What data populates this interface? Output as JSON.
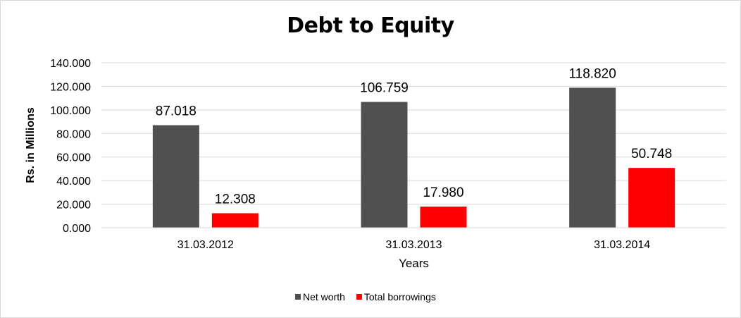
{
  "chart_data": {
    "type": "bar",
    "title": "Debt to Equity",
    "xlabel": "Years",
    "ylabel": "Rs. in Millions",
    "categories": [
      "31.03.2012",
      "31.03.2013",
      "31.03.2014"
    ],
    "series": [
      {
        "name": "Net worth",
        "values": [
          87.018,
          106.759,
          118.82
        ],
        "labels": [
          "87.018",
          "106.759",
          "118.820"
        ],
        "color": "#505050"
      },
      {
        "name": "Total borrowings",
        "values": [
          12.308,
          17.98,
          50.748
        ],
        "labels": [
          "12.308",
          "17.980",
          "50.748"
        ],
        "color": "#ff0000"
      }
    ],
    "ylim": [
      0,
      140
    ],
    "yticks": [
      0,
      20,
      40,
      60,
      80,
      100,
      120,
      140
    ],
    "ytick_labels": [
      "0.000",
      "20.000",
      "40.000",
      "60.000",
      "80.000",
      "100.000",
      "120.000",
      "140.000"
    ],
    "grid": true,
    "legend_position": "bottom"
  }
}
